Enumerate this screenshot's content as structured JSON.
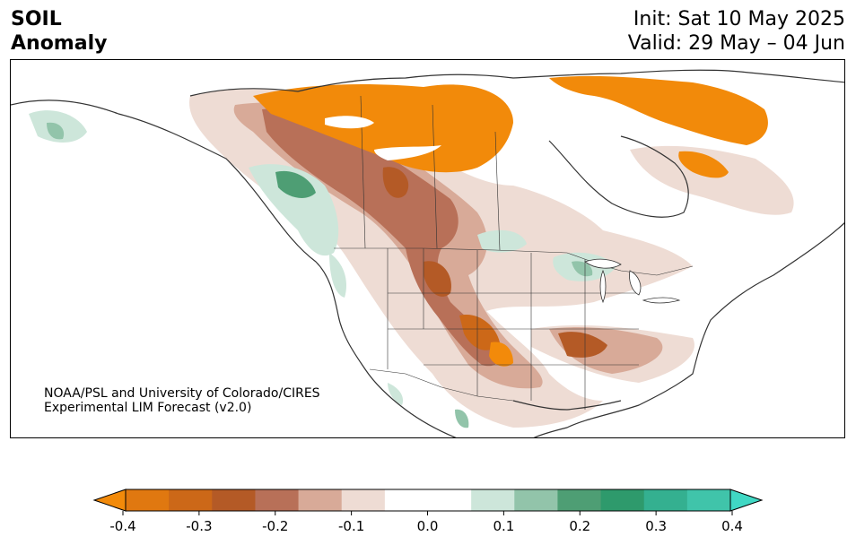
{
  "title": {
    "line1": "SOIL",
    "line2": "Anomaly"
  },
  "dates": {
    "init": "Init: Sat 10 May 2025",
    "valid": "Valid: 29 May – 04 Jun"
  },
  "credit": {
    "line1": "NOAA/PSL and University of Colorado/CIRES",
    "line2": "Experimental LIM Forecast (v2.0)"
  },
  "colorbar": {
    "ticks": [
      "-0.4",
      "-0.3",
      "-0.2",
      "-0.1",
      "0.0",
      "0.1",
      "0.2",
      "0.3",
      "0.4"
    ],
    "colors": [
      "#f28a0a",
      "#e07810",
      "#cc6818",
      "#b45a26",
      "#b87058",
      "#d8aa98",
      "#eedcd4",
      "#ffffff",
      "#ffffff",
      "#cde6da",
      "#92c4aa",
      "#4e9e74",
      "#2e9a6c",
      "#34b090",
      "#40c4aa",
      "#40d8c4"
    ]
  },
  "map": {
    "land_color": "#ffffff",
    "boundary_color": "#333333"
  }
}
